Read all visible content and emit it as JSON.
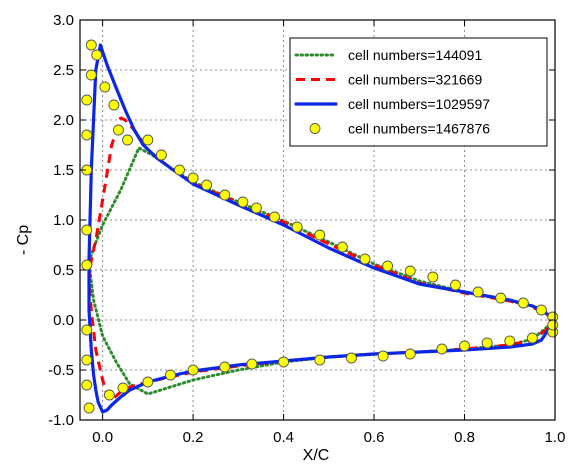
{
  "chart_data": {
    "type": "line",
    "xlabel": "X/C",
    "ylabel": "- Cp",
    "xlim": [
      -0.05,
      1.0
    ],
    "ylim": [
      -1.0,
      3.0
    ],
    "x_ticks": [
      0.0,
      0.2,
      0.4,
      0.6,
      0.8,
      1.0
    ],
    "x_tick_labels": [
      "0.0",
      "0.2",
      "0.4",
      "0.6",
      "0.8",
      "1.0"
    ],
    "y_ticks": [
      -1.0,
      -0.5,
      0.0,
      0.5,
      1.0,
      1.5,
      2.0,
      2.5,
      3.0
    ],
    "y_tick_labels": [
      "-1.0",
      "-0.5",
      "0.0",
      "0.5",
      "1.0",
      "1.5",
      "2.0",
      "2.5",
      "3.0"
    ],
    "grid": true,
    "legend_position": "top-right",
    "series": [
      {
        "name": "cell numbers=144091",
        "style": "dotted",
        "color": "#2e8b2e",
        "x": [
          1.0,
          0.95,
          0.9,
          0.8,
          0.7,
          0.6,
          0.5,
          0.4,
          0.3,
          0.2,
          0.15,
          0.11,
          0.08,
          0.04,
          0.0,
          -0.02,
          -0.03,
          -0.02,
          0.0,
          0.03,
          0.06,
          0.1,
          0.2,
          0.3,
          0.4,
          0.5,
          0.6,
          0.7,
          0.8,
          0.9,
          0.95,
          0.98,
          1.0
        ],
        "y": [
          0.03,
          0.14,
          0.19,
          0.28,
          0.39,
          0.56,
          0.78,
          0.99,
          1.18,
          1.38,
          1.52,
          1.65,
          1.72,
          1.3,
          0.95,
          0.72,
          0.57,
          0.2,
          -0.16,
          -0.42,
          -0.64,
          -0.74,
          -0.6,
          -0.5,
          -0.42,
          -0.37,
          -0.34,
          -0.32,
          -0.29,
          -0.25,
          -0.19,
          -0.08,
          0.03
        ]
      },
      {
        "name": "cell numbers=321669",
        "style": "dashed",
        "color": "#ff0000",
        "x": [
          1.0,
          0.95,
          0.9,
          0.8,
          0.7,
          0.6,
          0.5,
          0.4,
          0.3,
          0.2,
          0.15,
          0.1,
          0.07,
          0.05,
          0.04,
          0.02,
          0.0,
          -0.015,
          -0.025,
          -0.03,
          -0.025,
          -0.015,
          0.0,
          0.01,
          0.02,
          0.04,
          0.06,
          0.1,
          0.2,
          0.3,
          0.4,
          0.5,
          0.6,
          0.7,
          0.8,
          0.9,
          0.95,
          0.98,
          1.0
        ],
        "y": [
          0.01,
          0.13,
          0.19,
          0.27,
          0.37,
          0.55,
          0.76,
          0.98,
          1.17,
          1.37,
          1.52,
          1.7,
          1.9,
          2.0,
          2.02,
          1.75,
          1.2,
          0.8,
          0.6,
          0.4,
          0.1,
          -0.3,
          -0.6,
          -0.75,
          -0.8,
          -0.72,
          -0.67,
          -0.62,
          -0.52,
          -0.46,
          -0.41,
          -0.37,
          -0.34,
          -0.32,
          -0.29,
          -0.25,
          -0.2,
          -0.1,
          0.01
        ]
      },
      {
        "name": "cell numbers=1029597",
        "style": "solid",
        "color": "#0a27e8",
        "x": [
          1.0,
          0.97,
          0.95,
          0.9,
          0.8,
          0.7,
          0.6,
          0.5,
          0.4,
          0.3,
          0.2,
          0.15,
          0.12,
          0.09,
          0.07,
          0.05,
          0.03,
          0.01,
          -0.005,
          -0.015,
          -0.025,
          -0.03,
          -0.03,
          -0.025,
          -0.02,
          -0.015,
          -0.01,
          0.0,
          0.01,
          0.02,
          0.04,
          0.06,
          0.1,
          0.15,
          0.2,
          0.3,
          0.4,
          0.5,
          0.6,
          0.7,
          0.8,
          0.9,
          0.95,
          0.97,
          1.0
        ],
        "y": [
          0.0,
          0.1,
          0.14,
          0.2,
          0.28,
          0.36,
          0.52,
          0.72,
          0.95,
          1.15,
          1.36,
          1.52,
          1.62,
          1.75,
          1.9,
          2.1,
          2.32,
          2.55,
          2.75,
          2.5,
          1.5,
          0.6,
          0.1,
          -0.3,
          -0.55,
          -0.7,
          -0.82,
          -0.92,
          -0.9,
          -0.85,
          -0.77,
          -0.7,
          -0.62,
          -0.56,
          -0.51,
          -0.45,
          -0.41,
          -0.37,
          -0.34,
          -0.32,
          -0.3,
          -0.27,
          -0.24,
          -0.2,
          0.0
        ]
      },
      {
        "name": "cell numbers=1467876",
        "style": "markers",
        "color": "#ffff00",
        "edge_color": "#555555",
        "x": [
          -0.025,
          -0.013,
          -0.025,
          0.005,
          0.025,
          0.035,
          0.055,
          0.1,
          0.13,
          0.17,
          0.2,
          0.23,
          0.27,
          0.31,
          0.34,
          0.38,
          0.43,
          0.48,
          0.53,
          0.58,
          0.63,
          0.68,
          0.73,
          0.78,
          0.83,
          0.88,
          0.93,
          0.97,
          0.995,
          -0.035,
          -0.035,
          -0.035,
          -0.035,
          -0.035,
          -0.035,
          -0.035,
          -0.035,
          -0.03,
          0.015,
          0.045,
          0.1,
          0.15,
          0.2,
          0.27,
          0.33,
          0.4,
          0.48,
          0.55,
          0.62,
          0.68,
          0.75,
          0.8,
          0.85,
          0.9,
          0.95,
          0.995,
          0.995
        ],
        "y": [
          2.75,
          2.65,
          2.45,
          2.33,
          2.15,
          1.9,
          1.8,
          1.8,
          1.65,
          1.5,
          1.42,
          1.35,
          1.25,
          1.18,
          1.12,
          1.03,
          0.93,
          0.85,
          0.73,
          0.61,
          0.54,
          0.49,
          0.43,
          0.35,
          0.28,
          0.22,
          0.17,
          0.1,
          0.03,
          2.2,
          1.85,
          1.5,
          0.9,
          0.55,
          -0.1,
          -0.4,
          -0.65,
          -0.88,
          -0.75,
          -0.68,
          -0.62,
          -0.55,
          -0.5,
          -0.47,
          -0.44,
          -0.42,
          -0.4,
          -0.38,
          -0.36,
          -0.34,
          -0.29,
          -0.26,
          -0.23,
          -0.21,
          -0.18,
          -0.12,
          -0.05
        ]
      }
    ]
  }
}
